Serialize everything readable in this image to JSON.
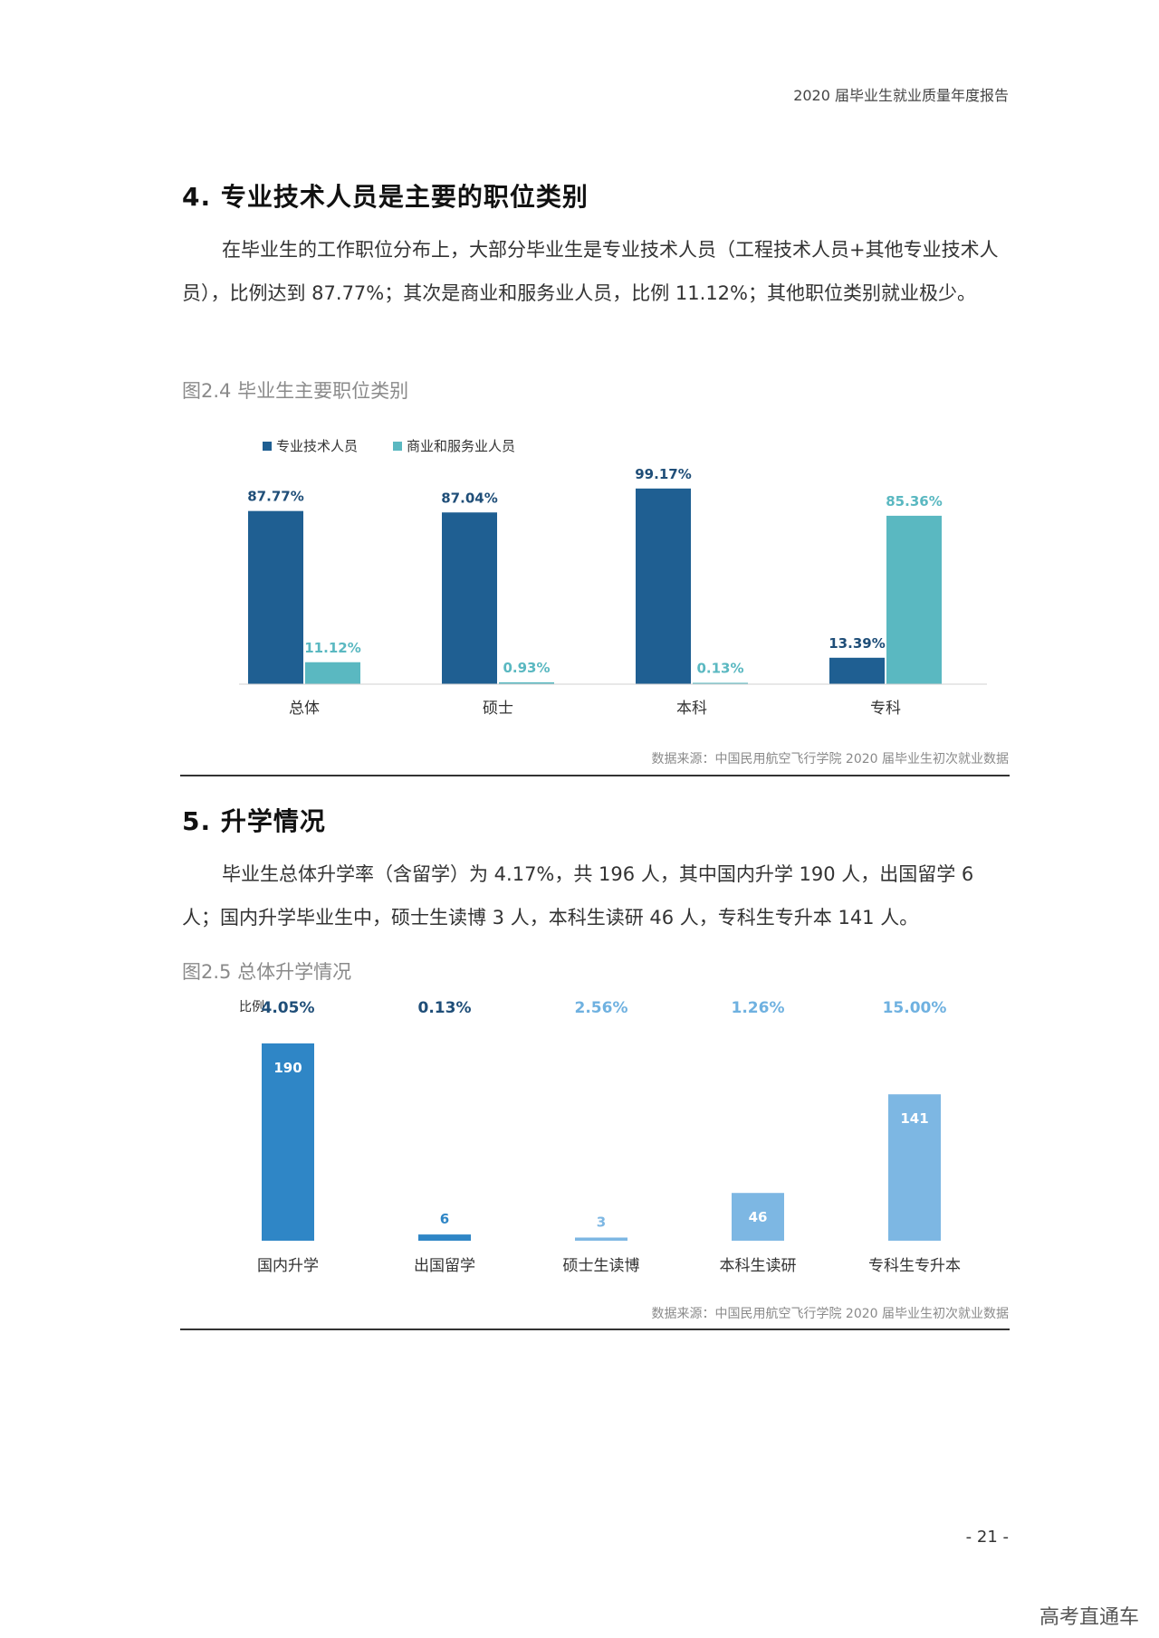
{
  "header": {
    "title": "2020 届毕业生就业质量年度报告"
  },
  "section4": {
    "heading": "4. 专业技术人员是主要的职位类别",
    "paragraph": "在毕业生的工作职位分布上，大部分毕业生是专业技术人员（工程技术人员+其他专业技术人员），比例达到 87.77%；其次是商业和服务业人员，比例 11.12%；其他职位类别就业极少。",
    "figure_title": "图2.4 毕业生主要职位类别",
    "source": "数据来源：中国民用航空飞行学院 2020 届毕业生初次就业数据"
  },
  "section5": {
    "heading": "5. 升学情况",
    "paragraph": "毕业生总体升学率（含留学）为 4.17%，共 196 人，其中国内升学 190 人，出国留学 6 人；国内升学毕业生中，硕士生读博 3 人，本科生读研 46 人，专科生专升本 141 人。",
    "figure_title": "图2.5 总体升学情况",
    "source": "数据来源：中国民用航空飞行学院 2020 届毕业生初次就业数据"
  },
  "page_number": "- 21 -",
  "watermark": "高考直通车",
  "chart_data": [
    {
      "type": "bar",
      "categories": [
        "总体",
        "硕士",
        "本科",
        "专科"
      ],
      "series": [
        {
          "name": "专业技术人员",
          "values": [
            87.77,
            87.04,
            99.17,
            13.39
          ],
          "labels": [
            "87.77%",
            "87.04%",
            "99.17%",
            "13.39%"
          ],
          "color": "#1f5f92"
        },
        {
          "name": "商业和服务业人员",
          "values": [
            11.12,
            0.93,
            0.13,
            85.36
          ],
          "labels": [
            "11.12%",
            "0.93%",
            "0.13%",
            "85.36%"
          ],
          "color": "#5ab8c1"
        }
      ],
      "ylim": [
        0,
        100
      ],
      "grid": false,
      "legend_position": "top-left"
    },
    {
      "type": "bar",
      "ratio_label": "比例",
      "categories": [
        "国内升学",
        "出国留学",
        "硕士生读博",
        "本科生读研",
        "专科生专升本"
      ],
      "values": [
        190,
        6,
        3,
        46,
        141
      ],
      "value_labels": [
        "190",
        "6",
        "3",
        "46",
        "141"
      ],
      "ratios": [
        "4.05%",
        "0.13%",
        "2.56%",
        "1.26%",
        "15.00%"
      ],
      "colors": [
        "#2f86c6",
        "#2f86c6",
        "#7db7e3",
        "#7db7e3",
        "#7db7e3"
      ],
      "ratio_colors": [
        "#1f4e78",
        "#1f4e78",
        "#6fb1e0",
        "#6fb1e0",
        "#6fb1e0"
      ],
      "ylim": [
        0,
        190
      ],
      "grid": false
    }
  ]
}
